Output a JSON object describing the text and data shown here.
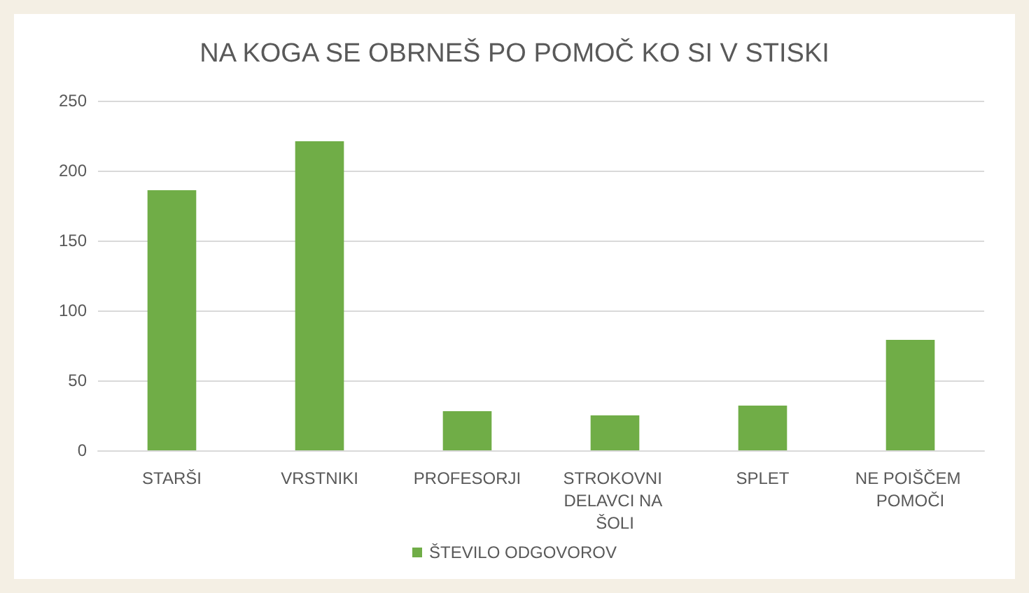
{
  "chart_data": {
    "type": "bar",
    "title": "NA KOGA SE OBRNEŠ PO POMOČ KO SI V STISKI",
    "categories": [
      "STARŠI",
      "VRSTNIKI",
      "PROFESORJI",
      "STROKOVNI DELAVCI NA ŠOLI",
      "SPLET",
      "NE POIŠČEM POMOČI"
    ],
    "series": [
      {
        "name": "ŠTEVILO ODGOVOROV",
        "color": "#70ad47",
        "values": [
          186,
          221,
          28,
          25,
          32,
          79
        ]
      }
    ],
    "ylim": [
      0,
      250
    ],
    "yticks": [
      0,
      50,
      100,
      150,
      200,
      250
    ],
    "grid": "y",
    "legend": "bottom"
  }
}
